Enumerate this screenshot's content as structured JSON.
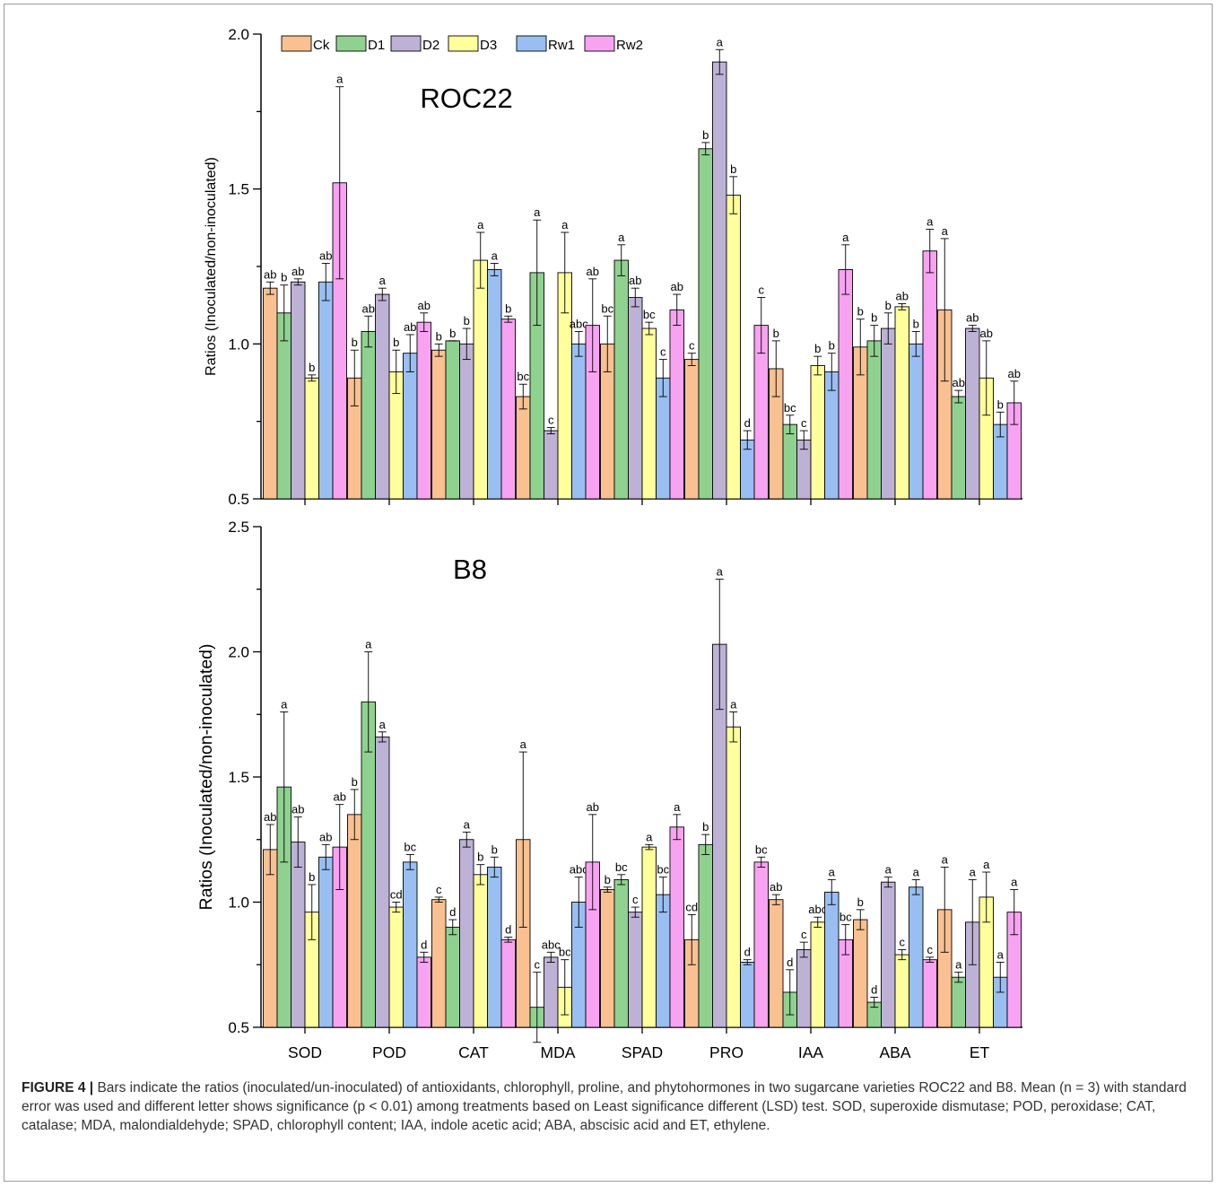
{
  "chart_data": [
    {
      "type": "bar",
      "title": "ROC22",
      "ylabel": "Ratios (Inoculated/non-inoculated)",
      "xlabel": "",
      "ylim": [
        0.5,
        2.0
      ],
      "yticks": [
        "0.5",
        "1.0",
        "1.5",
        "2.0"
      ],
      "categories": [
        "SOD",
        "POD",
        "CAT",
        "MDA",
        "SPAD",
        "PRO",
        "IAA",
        "ABA",
        "ET"
      ],
      "legend_position": "top-left",
      "series": [
        {
          "name": "Ck",
          "color": "#f9c091",
          "values": [
            1.18,
            0.89,
            0.98,
            0.83,
            1.0,
            0.95,
            0.92,
            0.99,
            1.11
          ],
          "errors": [
            0.02,
            0.09,
            0.02,
            0.04,
            0.09,
            0.02,
            0.09,
            0.09,
            0.23
          ],
          "labels": [
            "ab",
            "b",
            "b",
            "bc",
            "bc",
            "c",
            "b",
            "b",
            "a"
          ]
        },
        {
          "name": "D1",
          "color": "#8fd28f",
          "values": [
            1.1,
            1.04,
            1.01,
            1.23,
            1.27,
            1.63,
            0.74,
            1.01,
            0.83
          ],
          "errors": [
            0.09,
            0.05,
            0.0,
            0.17,
            0.05,
            0.02,
            0.03,
            0.05,
            0.02
          ],
          "labels": [
            "b",
            "ab",
            "b",
            "a",
            "a",
            "b",
            "bc",
            "b",
            "ab"
          ]
        },
        {
          "name": "D2",
          "color": "#bdb2d6",
          "values": [
            1.2,
            1.16,
            1.0,
            0.72,
            1.15,
            1.91,
            0.69,
            1.05,
            1.05
          ],
          "errors": [
            0.01,
            0.02,
            0.05,
            0.01,
            0.03,
            0.04,
            0.03,
            0.05,
            0.01
          ],
          "labels": [
            "ab",
            "a",
            "b",
            "c",
            "ab",
            "a",
            "c",
            "b",
            "ab"
          ]
        },
        {
          "name": "D3",
          "color": "#ffff9c",
          "values": [
            0.89,
            0.91,
            1.27,
            1.23,
            1.05,
            1.48,
            0.93,
            1.12,
            0.89
          ],
          "errors": [
            0.01,
            0.07,
            0.09,
            0.13,
            0.02,
            0.06,
            0.03,
            0.01,
            0.12
          ],
          "labels": [
            "b",
            "b",
            "a",
            "a",
            "bc",
            "b",
            "b",
            "ab",
            "ab"
          ]
        },
        {
          "name": "Rw1",
          "color": "#99bff2",
          "values": [
            1.2,
            0.97,
            1.24,
            1.0,
            0.89,
            0.69,
            0.91,
            1.0,
            0.74
          ],
          "errors": [
            0.06,
            0.06,
            0.02,
            0.04,
            0.06,
            0.03,
            0.06,
            0.04,
            0.04
          ],
          "labels": [
            "ab",
            "ab",
            "a",
            "abc",
            "c",
            "d",
            "b",
            "b",
            "b"
          ]
        },
        {
          "name": "Rw2",
          "color": "#f7a3f2",
          "values": [
            1.52,
            1.07,
            1.08,
            1.06,
            1.11,
            1.06,
            1.24,
            1.3,
            0.81
          ],
          "errors": [
            0.31,
            0.03,
            0.01,
            0.15,
            0.05,
            0.09,
            0.08,
            0.07,
            0.07
          ],
          "labels": [
            "a",
            "ab",
            "b",
            "ab",
            "ab",
            "c",
            "a",
            "a",
            "ab"
          ]
        }
      ]
    },
    {
      "type": "bar",
      "title": "B8",
      "ylabel": "Ratios (Inoculated/non-inoculated)",
      "xlabel": "",
      "ylim": [
        0.5,
        2.5
      ],
      "yticks": [
        "0.5",
        "1.0",
        "1.5",
        "2.0",
        "2.5"
      ],
      "categories": [
        "SOD",
        "POD",
        "CAT",
        "MDA",
        "SPAD",
        "PRO",
        "IAA",
        "ABA",
        "ET"
      ],
      "series": [
        {
          "name": "Ck",
          "color": "#f9c091",
          "values": [
            1.21,
            1.35,
            1.01,
            1.25,
            1.05,
            0.85,
            1.01,
            0.93,
            0.97
          ],
          "errors": [
            0.1,
            0.1,
            0.01,
            0.35,
            0.01,
            0.1,
            0.02,
            0.04,
            0.17
          ],
          "labels": [
            "ab",
            "b",
            "c",
            "a",
            "b",
            "cd",
            "ab",
            "b",
            "a"
          ]
        },
        {
          "name": "D1",
          "color": "#8fd28f",
          "values": [
            1.46,
            1.8,
            0.9,
            0.58,
            1.09,
            1.23,
            0.64,
            0.6,
            0.7
          ],
          "errors": [
            0.3,
            0.2,
            0.03,
            0.14,
            0.02,
            0.04,
            0.09,
            0.02,
            0.02
          ],
          "labels": [
            "a",
            "a",
            "d",
            "c",
            "bc",
            "b",
            "d",
            "d",
            "a"
          ]
        },
        {
          "name": "D2",
          "color": "#bdb2d6",
          "values": [
            1.24,
            1.66,
            1.25,
            0.78,
            0.96,
            2.03,
            0.81,
            1.08,
            0.92
          ],
          "errors": [
            0.1,
            0.02,
            0.03,
            0.02,
            0.02,
            0.26,
            0.03,
            0.02,
            0.17
          ],
          "labels": [
            "ab",
            "a",
            "a",
            "abc",
            "c",
            "a",
            "c",
            "a",
            "a"
          ]
        },
        {
          "name": "D3",
          "color": "#ffff9c",
          "values": [
            0.96,
            0.98,
            1.11,
            0.66,
            1.22,
            1.7,
            0.92,
            0.79,
            1.02
          ],
          "errors": [
            0.11,
            0.02,
            0.04,
            0.11,
            0.01,
            0.06,
            0.02,
            0.02,
            0.1
          ],
          "labels": [
            "b",
            "cd",
            "b",
            "bc",
            "a",
            "a",
            "abc",
            "c",
            "a"
          ]
        },
        {
          "name": "Rw1",
          "color": "#99bff2",
          "values": [
            1.18,
            1.16,
            1.14,
            1.0,
            1.03,
            0.76,
            1.04,
            1.06,
            0.7
          ],
          "errors": [
            0.05,
            0.03,
            0.04,
            0.1,
            0.07,
            0.01,
            0.05,
            0.03,
            0.06
          ],
          "labels": [
            "ab",
            "bc",
            "b",
            "abc",
            "bc",
            "d",
            "a",
            "a",
            "a"
          ]
        },
        {
          "name": "Rw2",
          "color": "#f7a3f2",
          "values": [
            1.22,
            0.78,
            0.85,
            1.16,
            1.3,
            1.16,
            0.85,
            0.77,
            0.96
          ],
          "errors": [
            0.17,
            0.02,
            0.01,
            0.19,
            0.05,
            0.02,
            0.06,
            0.01,
            0.09
          ],
          "labels": [
            "ab",
            "d",
            "d",
            "ab",
            "a",
            "bc",
            "bc",
            "c",
            "a"
          ]
        }
      ]
    }
  ],
  "caption": {
    "label": "FIGURE 4 |",
    "text": "Bars indicate the ratios (inoculated/un-inoculated) of antioxidants, chlorophyll, proline, and phytohormones in two sugarcane varieties ROC22 and B8. Mean (n = 3) with standard error was used and different letter shows significance (p < 0.01) among treatments based on Least significance different (LSD) test. SOD, superoxide dismutase; POD, peroxidase; CAT, catalase; MDA, malondialdehyde; SPAD, chlorophyll content; IAA, indole acetic acid; ABA, abscisic acid and ET, ethylene."
  }
}
